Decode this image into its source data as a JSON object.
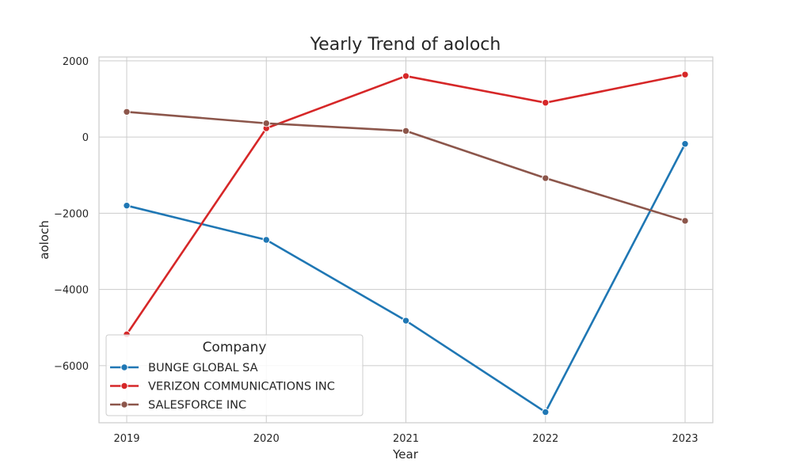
{
  "chart_data": {
    "type": "line",
    "title": "Yearly Trend of aoloch",
    "xlabel": "Year",
    "ylabel": "aoloch",
    "x": [
      "2019",
      "2020",
      "2021",
      "2022",
      "2023"
    ],
    "ylim": [
      -7500,
      2100
    ],
    "yticks": [
      2000,
      0,
      -2000,
      -4000,
      -6000
    ],
    "ytick_labels": [
      "2000",
      "0",
      "−2000",
      "−4000",
      "−6000"
    ],
    "grid": true,
    "legend": {
      "title": "Company",
      "position": "lower-left"
    },
    "series": [
      {
        "name": "BUNGE GLOBAL SA",
        "color": "#1f77b4",
        "values": [
          -1800,
          -2700,
          -4820,
          -7220,
          -180
        ]
      },
      {
        "name": "VERIZON COMMUNICATIONS INC",
        "color": "#d62728",
        "values": [
          -5180,
          230,
          1600,
          900,
          1640
        ]
      },
      {
        "name": "SALESFORCE INC",
        "color": "#8c564b",
        "values": [
          660,
          360,
          160,
          -1080,
          -2200
        ]
      }
    ]
  }
}
